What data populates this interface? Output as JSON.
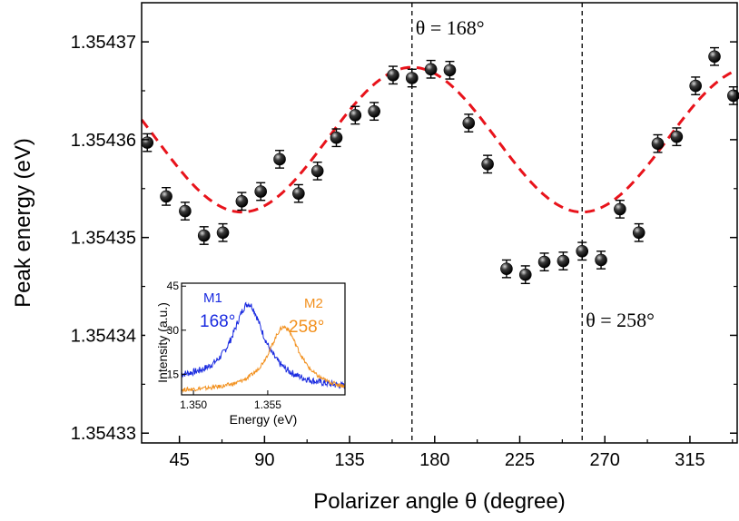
{
  "chart_data": {
    "main": {
      "type": "scatter",
      "xlabel": "Polarizer angle θ (degree)",
      "ylabel": "Peak energy (eV)",
      "xlim": [
        25,
        340
      ],
      "ylim": [
        1.354329,
        1.354374
      ],
      "x_ticks": [
        45,
        90,
        135,
        180,
        225,
        270,
        315
      ],
      "y_ticks": [
        1.35433,
        1.35434,
        1.35435,
        1.35436,
        1.35437
      ],
      "y_tick_labels": [
        "1.35433",
        "1.35434",
        "1.35435",
        "1.35436",
        "1.35437"
      ],
      "points": [
        {
          "x": 28,
          "y": 1.3543597,
          "err": 9e-07
        },
        {
          "x": 38,
          "y": 1.3543542,
          "err": 9e-07
        },
        {
          "x": 48,
          "y": 1.3543527,
          "err": 9e-07
        },
        {
          "x": 58,
          "y": 1.3543502,
          "err": 9e-07
        },
        {
          "x": 68,
          "y": 1.3543505,
          "err": 9e-07
        },
        {
          "x": 78,
          "y": 1.3543537,
          "err": 9e-07
        },
        {
          "x": 88,
          "y": 1.3543547,
          "err": 9e-07
        },
        {
          "x": 98,
          "y": 1.354358,
          "err": 9e-07
        },
        {
          "x": 108,
          "y": 1.3543545,
          "err": 9e-07
        },
        {
          "x": 118,
          "y": 1.3543568,
          "err": 9e-07
        },
        {
          "x": 128,
          "y": 1.3543602,
          "err": 9e-07
        },
        {
          "x": 138,
          "y": 1.3543625,
          "err": 9e-07
        },
        {
          "x": 148,
          "y": 1.3543629,
          "err": 9e-07
        },
        {
          "x": 158,
          "y": 1.3543666,
          "err": 9e-07
        },
        {
          "x": 168,
          "y": 1.3543663,
          "err": 9e-07
        },
        {
          "x": 178,
          "y": 1.3543672,
          "err": 9e-07
        },
        {
          "x": 188,
          "y": 1.3543671,
          "err": 9e-07
        },
        {
          "x": 198,
          "y": 1.3543617,
          "err": 9e-07
        },
        {
          "x": 208,
          "y": 1.3543575,
          "err": 9e-07
        },
        {
          "x": 218,
          "y": 1.3543468,
          "err": 9e-07
        },
        {
          "x": 228,
          "y": 1.3543462,
          "err": 9e-07
        },
        {
          "x": 238,
          "y": 1.3543475,
          "err": 9e-07
        },
        {
          "x": 248,
          "y": 1.3543476,
          "err": 9e-07
        },
        {
          "x": 258,
          "y": 1.3543486,
          "err": 9e-07
        },
        {
          "x": 268,
          "y": 1.3543477,
          "err": 9e-07
        },
        {
          "x": 278,
          "y": 1.3543529,
          "err": 9e-07
        },
        {
          "x": 288,
          "y": 1.3543505,
          "err": 9e-07
        },
        {
          "x": 298,
          "y": 1.3543596,
          "err": 9e-07
        },
        {
          "x": 308,
          "y": 1.3543603,
          "err": 9e-07
        },
        {
          "x": 318,
          "y": 1.3543655,
          "err": 9e-07
        },
        {
          "x": 328,
          "y": 1.3543685,
          "err": 9e-07
        },
        {
          "x": 338,
          "y": 1.3543645,
          "err": 9e-07
        }
      ],
      "fit": {
        "style": "dashed",
        "color": "#e8131b",
        "offset": 1.35436,
        "amplitude": 7.4e-06,
        "center_deg": 168,
        "period_deg": 180
      },
      "vlines": [
        {
          "x": 168,
          "label": "θ = 168°"
        },
        {
          "x": 258,
          "label": "θ = 258°"
        }
      ]
    },
    "inset": {
      "type": "line",
      "xlabel": "Energy (eV)",
      "ylabel": "Intensity (a.u.)",
      "xlim": [
        1.3492,
        1.3602
      ],
      "ylim": [
        8,
        46
      ],
      "x_ticks": [
        1.35,
        1.355
      ],
      "x_tick_labels": [
        "1.350",
        "1.355"
      ],
      "y_ticks": [
        15,
        30,
        45
      ],
      "y_tick_labels": [
        "15",
        "30",
        "45"
      ],
      "series": [
        {
          "name": "M1",
          "angle": "168°",
          "color": "#1a2be0",
          "peak": 1.3537,
          "height": 32,
          "width": 0.0013,
          "baseline": 10
        },
        {
          "name": "M2",
          "angle": "258°",
          "color": "#f2901d",
          "peak": 1.3561,
          "height": 26,
          "width": 0.0013,
          "baseline": 10
        }
      ]
    }
  }
}
